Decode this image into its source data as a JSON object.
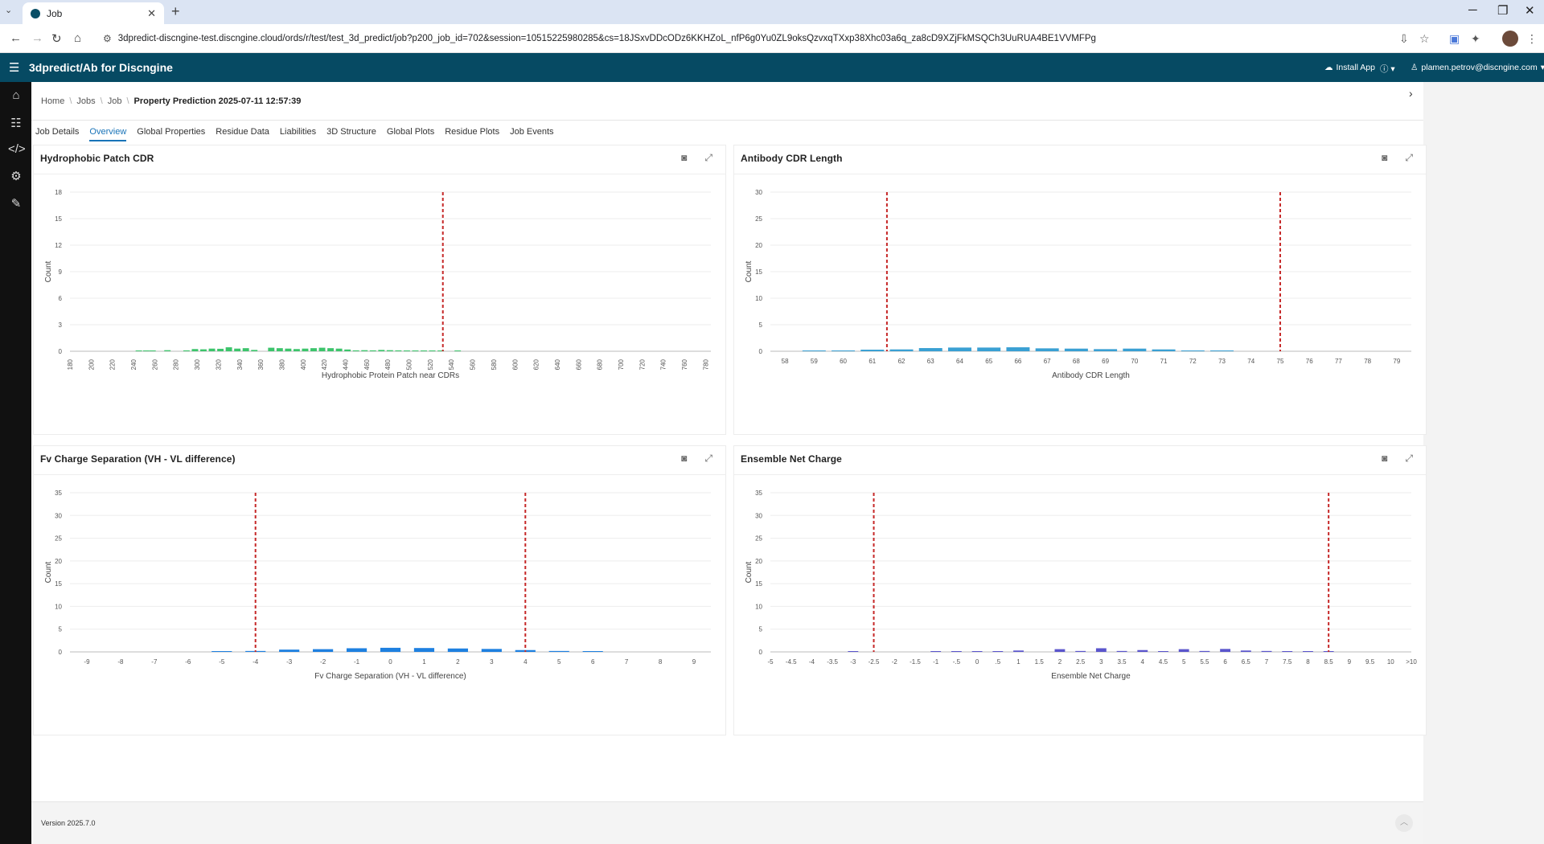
{
  "browser": {
    "tab_title": "Job",
    "url": "3dpredict-discngine-test.discngine.cloud/ords/r/test/test_3d_predict/job?p200_job_id=702&session=10515225980285&cs=18JSxvDDcODz6KKHZoL_nfP6g0Yu0ZL9oksQzvxqTXxp38Xhc03a6q_za8cD9XZjFkMSQCh3UuRUA4BE1VVMFPg"
  },
  "app": {
    "title": "3dpredict/Ab for Discngine",
    "install_label": "Install App",
    "user": "plamen.petrov@discngine.com"
  },
  "breadcrumb": [
    "Home",
    "Jobs",
    "Job"
  ],
  "breadcrumb_current": "Property Prediction 2025-07-11 12:57:39",
  "tabs": [
    "Job Details",
    "Overview",
    "Global Properties",
    "Residue Data",
    "Liabilities",
    "3D Structure",
    "Global Plots",
    "Residue Plots",
    "Job Events"
  ],
  "active_tab": "Overview",
  "version": "Version 2025.7.0",
  "chart_data": [
    {
      "type": "bar",
      "title": "Hydrophobic Patch CDR",
      "xlabel": "Hydrophobic Protein Patch near CDRs",
      "ylabel": "Count",
      "ylim": [
        0,
        18
      ],
      "yticks": [
        0,
        3,
        6,
        9,
        12,
        15,
        18
      ],
      "tick_labels": [
        "180",
        "200",
        "220",
        "240",
        "260",
        "280",
        "300",
        "320",
        "340",
        "360",
        "380",
        "400",
        "420",
        "440",
        "460",
        "480",
        "500",
        "520",
        "540",
        "560",
        "580",
        "600",
        "620",
        "640",
        "660",
        "680",
        "700",
        "720",
        "740",
        "760",
        "780"
      ],
      "x_range": [
        180,
        785
      ],
      "bar_width": 6,
      "bars": [
        [
          245,
          0.05
        ],
        [
          252,
          0.08
        ],
        [
          258,
          0.06
        ],
        [
          272,
          0.12
        ],
        [
          290,
          0.1
        ],
        [
          298,
          0.25
        ],
        [
          306,
          0.22
        ],
        [
          314,
          0.3
        ],
        [
          322,
          0.28
        ],
        [
          330,
          0.45
        ],
        [
          338,
          0.3
        ],
        [
          346,
          0.35
        ],
        [
          354,
          0.15
        ],
        [
          370,
          0.4
        ],
        [
          378,
          0.35
        ],
        [
          386,
          0.3
        ],
        [
          394,
          0.25
        ],
        [
          402,
          0.3
        ],
        [
          410,
          0.35
        ],
        [
          418,
          0.4
        ],
        [
          426,
          0.35
        ],
        [
          434,
          0.3
        ],
        [
          442,
          0.2
        ],
        [
          450,
          0.1
        ],
        [
          458,
          0.12
        ],
        [
          466,
          0.1
        ],
        [
          474,
          0.15
        ],
        [
          482,
          0.12
        ],
        [
          490,
          0.1
        ],
        [
          498,
          0.08
        ],
        [
          506,
          0.06
        ],
        [
          514,
          0.06
        ],
        [
          522,
          0.08
        ],
        [
          530,
          0.05
        ],
        [
          546,
          0.06
        ]
      ],
      "bar_color": "#3cc46b",
      "thresholds": [
        532
      ]
    },
    {
      "type": "bar",
      "title": "Antibody CDR Length",
      "xlabel": "Antibody CDR Length",
      "ylabel": "Count",
      "ylim": [
        0,
        30
      ],
      "yticks": [
        0,
        5,
        10,
        15,
        20,
        25,
        30
      ],
      "tick_labels": [
        "58",
        "59",
        "60",
        "61",
        "62",
        "63",
        "64",
        "65",
        "66",
        "67",
        "68",
        "69",
        "70",
        "71",
        "72",
        "73",
        "74",
        "75",
        "76",
        "77",
        "78",
        "79"
      ],
      "x_range": [
        57.5,
        79.5
      ],
      "bar_width": 0.8,
      "bars": [
        [
          59,
          0.05
        ],
        [
          60,
          0.1
        ],
        [
          61,
          0.3
        ],
        [
          62,
          0.35
        ],
        [
          63,
          0.6
        ],
        [
          64,
          0.7
        ],
        [
          65,
          0.7
        ],
        [
          66,
          0.75
        ],
        [
          67,
          0.55
        ],
        [
          68,
          0.5
        ],
        [
          69,
          0.4
        ],
        [
          70,
          0.5
        ],
        [
          71,
          0.35
        ],
        [
          72,
          0.15
        ],
        [
          73,
          0.05
        ]
      ],
      "bar_color": "#3aa0d3",
      "thresholds": [
        61.5,
        75
      ]
    },
    {
      "type": "bar",
      "title": "Fv Charge Separation (VH - VL difference)",
      "xlabel": "Fv Charge Separation (VH - VL difference)",
      "ylabel": "Count",
      "ylim": [
        0,
        35
      ],
      "yticks": [
        0,
        5,
        10,
        15,
        20,
        25,
        30,
        35
      ],
      "tick_labels": [
        "-9",
        "-8",
        "-7",
        "-6",
        "-5",
        "-4",
        "-3",
        "-2",
        "-1",
        "0",
        "1",
        "2",
        "3",
        "4",
        "5",
        "6",
        "7",
        "8",
        "9"
      ],
      "x_range": [
        -9.5,
        9.5
      ],
      "bar_width": 0.6,
      "bars": [
        [
          -5,
          0.05
        ],
        [
          -4,
          0.2
        ],
        [
          -3,
          0.5
        ],
        [
          -2,
          0.6
        ],
        [
          -1,
          0.8
        ],
        [
          0,
          0.9
        ],
        [
          1,
          0.85
        ],
        [
          2,
          0.75
        ],
        [
          3,
          0.65
        ],
        [
          4,
          0.4
        ],
        [
          5,
          0.2
        ],
        [
          6,
          0.05
        ]
      ],
      "bar_color": "#1e80e0",
      "thresholds": [
        -4,
        4
      ]
    },
    {
      "type": "bar",
      "title": "Ensemble Net Charge",
      "xlabel": "Ensemble Net Charge",
      "ylabel": "Count",
      "ylim": [
        0,
        35
      ],
      "yticks": [
        0,
        5,
        10,
        15,
        20,
        25,
        30,
        35
      ],
      "tick_labels": [
        "-5",
        "-4.5",
        "-4",
        "-3.5",
        "-3",
        "-2.5",
        "-2",
        "-1.5",
        "-1",
        "-.5",
        "0",
        ".5",
        "1",
        "1.5",
        "2",
        "2.5",
        "3",
        "3.5",
        "4",
        "4.5",
        "5",
        "5.5",
        "6",
        "6.5",
        "7",
        "7.5",
        "8",
        "8.5",
        "9",
        "9.5",
        "10",
        ">10"
      ],
      "x_range": [
        0,
        31
      ],
      "bar_width": 0.5,
      "bars": [
        [
          4,
          0.05
        ],
        [
          8,
          0.15
        ],
        [
          9,
          0.1
        ],
        [
          10,
          0.15
        ],
        [
          11,
          0.1
        ],
        [
          12,
          0.3
        ],
        [
          14,
          0.6
        ],
        [
          15,
          0.2
        ],
        [
          16,
          0.8
        ],
        [
          17,
          0.2
        ],
        [
          18,
          0.4
        ],
        [
          19,
          0.15
        ],
        [
          20,
          0.6
        ],
        [
          21,
          0.2
        ],
        [
          22,
          0.65
        ],
        [
          23,
          0.3
        ],
        [
          24,
          0.2
        ],
        [
          25,
          0.15
        ],
        [
          26,
          0.1
        ],
        [
          27,
          0.05
        ]
      ],
      "bar_color": "#5a55cc",
      "thresholds": [
        5,
        27
      ]
    }
  ]
}
